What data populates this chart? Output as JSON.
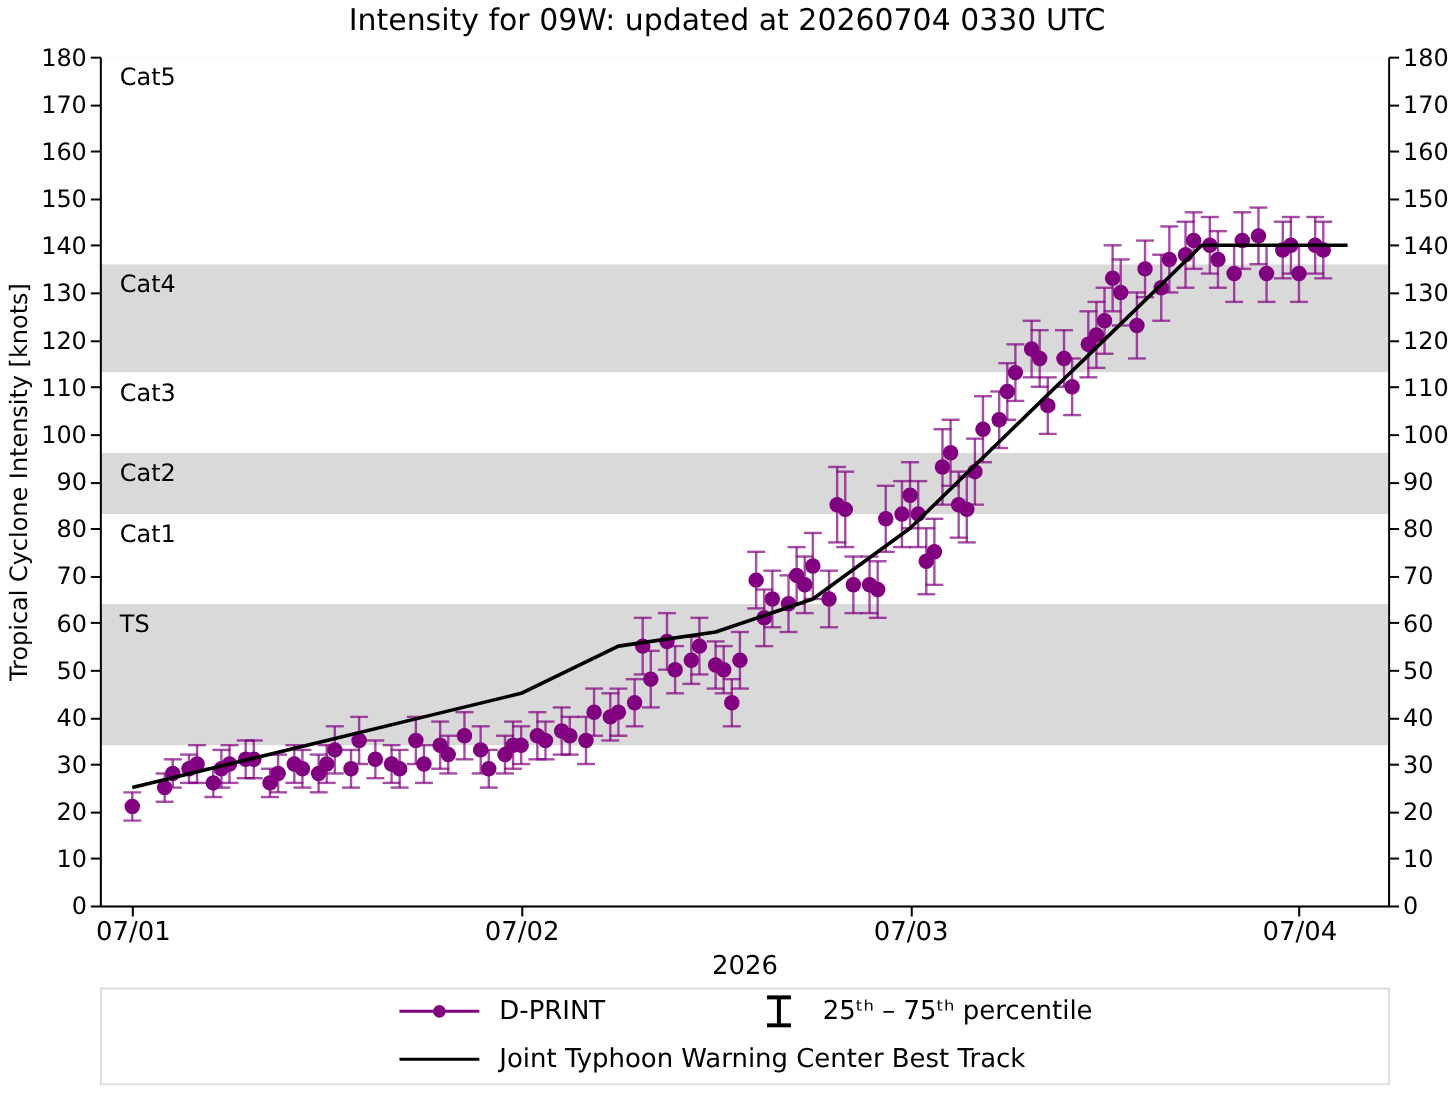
{
  "chart_data": {
    "type": "scatter",
    "title": "Intensity for 09W: updated at 20260704 0330 UTC",
    "xlabel": "2026",
    "ylabel": "Tropical Cyclone Intensity [knots]",
    "xlim": [
      "2026-06-30T22:00",
      "2026-07-04T05:30"
    ],
    "xticks": [
      {
        "value": "2026-07-01",
        "label": "07/01"
      },
      {
        "value": "2026-07-02",
        "label": "07/02"
      },
      {
        "value": "2026-07-03",
        "label": "07/03"
      },
      {
        "value": "2026-07-04",
        "label": "07/04"
      }
    ],
    "ylim": [
      0,
      180
    ],
    "yticks": [
      0,
      10,
      20,
      30,
      40,
      50,
      60,
      70,
      80,
      90,
      100,
      110,
      120,
      130,
      140,
      150,
      160,
      170,
      180
    ],
    "y2lim": [
      0,
      180
    ],
    "y2ticks": [
      0,
      10,
      20,
      30,
      40,
      50,
      60,
      70,
      80,
      90,
      100,
      110,
      120,
      130,
      140,
      150,
      160,
      170,
      180
    ],
    "grid": false,
    "legend": "bottom",
    "bands": [
      {
        "axis": "y",
        "from": 34,
        "to": 64,
        "label": "TS",
        "color": "#d9d9d9"
      },
      {
        "axis": "y",
        "from": 83,
        "to": 96,
        "label": "Cat2",
        "color": "#d9d9d9"
      },
      {
        "axis": "y",
        "from": 113,
        "to": 136,
        "label": "Cat4",
        "color": "#d9d9d9"
      },
      {
        "axis": "y",
        "from": 136,
        "to": 180,
        "label": "Cat5",
        "color": "#ffffff"
      },
      {
        "axis": "y",
        "from": 96,
        "to": 113,
        "label": "Cat3",
        "color": "#ffffff"
      },
      {
        "axis": "y",
        "from": 64,
        "to": 83,
        "label": "Cat1",
        "color": "#ffffff"
      }
    ],
    "annotations": [
      "25ᵗʰ – 75ᵗʰ percentile"
    ],
    "series": [
      {
        "name": "D-PRINT",
        "color": "#800080",
        "marker": "circle",
        "x": [
          "2026-07-01T00:00",
          "2026-07-01T02:00",
          "2026-07-01T02:30",
          "2026-07-01T03:30",
          "2026-07-01T04:00",
          "2026-07-01T05:00",
          "2026-07-01T05:30",
          "2026-07-01T06:00",
          "2026-07-01T07:00",
          "2026-07-01T07:30",
          "2026-07-01T08:30",
          "2026-07-01T09:00",
          "2026-07-01T10:00",
          "2026-07-01T10:30",
          "2026-07-01T11:30",
          "2026-07-01T12:00",
          "2026-07-01T12:30",
          "2026-07-01T13:30",
          "2026-07-01T14:00",
          "2026-07-01T15:00",
          "2026-07-01T16:00",
          "2026-07-01T16:30",
          "2026-07-01T17:30",
          "2026-07-01T18:00",
          "2026-07-01T19:00",
          "2026-07-01T19:30",
          "2026-07-01T20:30",
          "2026-07-01T21:30",
          "2026-07-01T22:00",
          "2026-07-01T23:00",
          "2026-07-01T23:30",
          "2026-07-02T00:00",
          "2026-07-02T01:00",
          "2026-07-02T01:30",
          "2026-07-02T02:30",
          "2026-07-02T03:00",
          "2026-07-02T04:00",
          "2026-07-02T04:30",
          "2026-07-02T05:30",
          "2026-07-02T06:00",
          "2026-07-02T07:00",
          "2026-07-02T07:30",
          "2026-07-02T08:00",
          "2026-07-02T09:00",
          "2026-07-02T09:30",
          "2026-07-02T10:30",
          "2026-07-02T11:00",
          "2026-07-02T12:00",
          "2026-07-02T12:30",
          "2026-07-02T13:00",
          "2026-07-02T13:30",
          "2026-07-02T14:30",
          "2026-07-02T15:00",
          "2026-07-02T15:30",
          "2026-07-02T16:30",
          "2026-07-02T17:00",
          "2026-07-02T17:30",
          "2026-07-02T18:00",
          "2026-07-02T19:00",
          "2026-07-02T19:30",
          "2026-07-02T20:00",
          "2026-07-02T20:30",
          "2026-07-02T21:30",
          "2026-07-02T22:00",
          "2026-07-02T22:30",
          "2026-07-02T23:30",
          "2026-07-03T00:00",
          "2026-07-03T00:30",
          "2026-07-03T01:00",
          "2026-07-03T01:30",
          "2026-07-03T02:00",
          "2026-07-03T02:30",
          "2026-07-03T03:00",
          "2026-07-03T03:30",
          "2026-07-03T04:00",
          "2026-07-03T04:30",
          "2026-07-03T05:30",
          "2026-07-03T06:00",
          "2026-07-03T06:30",
          "2026-07-03T07:30",
          "2026-07-03T08:00",
          "2026-07-03T08:30",
          "2026-07-03T09:30",
          "2026-07-03T10:00",
          "2026-07-03T11:00",
          "2026-07-03T11:30",
          "2026-07-03T12:00",
          "2026-07-03T12:30",
          "2026-07-03T13:00",
          "2026-07-03T14:00",
          "2026-07-03T14:30",
          "2026-07-03T15:30",
          "2026-07-03T16:00",
          "2026-07-03T17:00",
          "2026-07-03T17:30",
          "2026-07-03T18:30",
          "2026-07-03T19:00",
          "2026-07-03T20:00",
          "2026-07-03T20:30",
          "2026-07-03T21:30",
          "2026-07-03T22:00",
          "2026-07-03T23:00",
          "2026-07-03T23:30",
          "2026-07-04T00:00",
          "2026-07-04T01:00",
          "2026-07-04T01:30"
        ],
        "values": [
          21,
          25,
          28,
          29,
          30,
          26,
          29,
          30,
          31,
          31,
          26,
          28,
          30,
          29,
          28,
          30,
          33,
          29,
          35,
          31,
          30,
          29,
          35,
          30,
          34,
          32,
          36,
          33,
          29,
          32,
          34,
          34,
          36,
          35,
          37,
          36,
          35,
          41,
          40,
          41,
          43,
          55,
          48,
          56,
          50,
          52,
          55,
          51,
          50,
          43,
          52,
          69,
          61,
          65,
          64,
          70,
          68,
          72,
          65,
          85,
          84,
          68,
          68,
          67,
          82,
          83,
          87,
          83,
          73,
          75,
          93,
          96,
          85,
          84,
          92,
          101,
          103,
          109,
          113,
          118,
          116,
          106,
          116,
          110,
          119,
          121,
          124,
          133,
          130,
          123,
          135,
          131,
          137,
          138,
          141,
          140,
          137,
          134,
          141,
          142,
          134,
          139,
          140,
          134,
          140,
          139
        ],
        "errors": [
          3,
          3,
          3,
          3,
          4,
          3,
          4,
          4,
          4,
          4,
          3,
          4,
          4,
          4,
          4,
          4,
          5,
          4,
          5,
          4,
          4,
          4,
          5,
          4,
          5,
          4,
          5,
          5,
          4,
          4,
          5,
          4,
          5,
          4,
          5,
          4,
          5,
          5,
          5,
          5,
          5,
          6,
          6,
          6,
          5,
          5,
          6,
          5,
          5,
          5,
          6,
          6,
          6,
          6,
          6,
          6,
          6,
          7,
          6,
          8,
          8,
          6,
          6,
          6,
          7,
          7,
          7,
          7,
          7,
          7,
          8,
          7,
          7,
          7,
          7,
          7,
          6,
          6,
          6,
          6,
          6,
          6,
          6,
          6,
          7,
          7,
          7,
          7,
          7,
          7,
          6,
          7,
          7,
          7,
          6,
          6,
          6,
          6,
          6,
          6,
          6,
          6,
          6,
          6,
          6,
          6
        ]
      },
      {
        "name": "Joint Typhoon Warning Center Best Track",
        "type": "line",
        "color": "#000000",
        "x": [
          "2026-07-01T00:00",
          "2026-07-01T06:00",
          "2026-07-01T12:00",
          "2026-07-01T18:00",
          "2026-07-02T00:00",
          "2026-07-02T06:00",
          "2026-07-02T12:00",
          "2026-07-02T18:00",
          "2026-07-03T00:00",
          "2026-07-03T06:00",
          "2026-07-03T12:00",
          "2026-07-03T18:00",
          "2026-07-04T00:00",
          "2026-07-04T03:00"
        ],
        "values": [
          25,
          30,
          35,
          40,
          45,
          55,
          58,
          65,
          80,
          100,
          120,
          140,
          140,
          140
        ]
      }
    ]
  }
}
